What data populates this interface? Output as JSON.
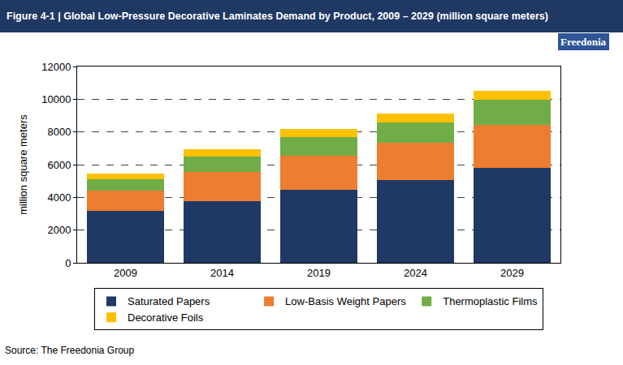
{
  "chart_data": {
    "type": "bar",
    "title": "Figure 4-1 | Global Low-Pressure Decorative Laminates Demand by Product, 2009 – 2029 (million square meters)",
    "logo": "Freedonia",
    "source": "Source: The Freedonia Group",
    "y_label": "million square meters",
    "categories": [
      "2009",
      "2014",
      "2019",
      "2024",
      "2029"
    ],
    "series": [
      {
        "name": "Saturated Papers",
        "color": "#1f3864",
        "values": [
          3150,
          3780,
          4480,
          5050,
          5780
        ]
      },
      {
        "name": "Low-Basis Weight Papers",
        "color": "#ed7d31",
        "values": [
          1270,
          1770,
          2070,
          2300,
          2640
        ]
      },
      {
        "name": "Thermoplastic Films",
        "color": "#70ad47",
        "values": [
          680,
          950,
          1130,
          1230,
          1530
        ]
      },
      {
        "name": "Decorative Foils",
        "color": "#ffc000",
        "values": [
          350,
          450,
          500,
          550,
          580
        ]
      }
    ],
    "stacked": true,
    "ylim": [
      0,
      12000
    ],
    "yticks": [
      0,
      2000,
      4000,
      6000,
      8000,
      10000,
      12000
    ],
    "grid": true,
    "legend": "bottom"
  }
}
